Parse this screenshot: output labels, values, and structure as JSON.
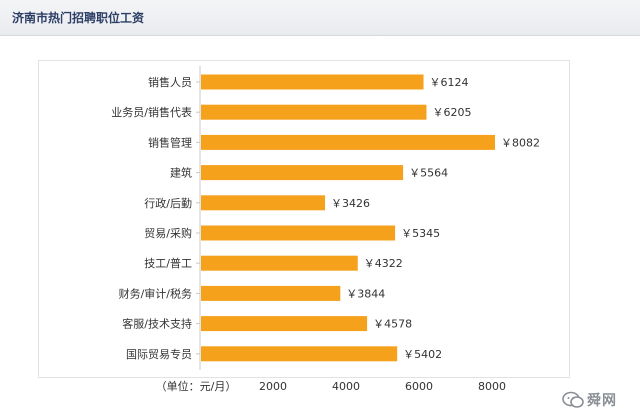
{
  "header": {
    "title": "济南市热门招聘职位工资"
  },
  "watermark": {
    "text": "舜网"
  },
  "chart_data": {
    "type": "bar",
    "orientation": "horizontal",
    "title": "",
    "xlabel": "",
    "ylabel": "",
    "unit_label": "（单位：元/月）",
    "categories": [
      "销售人员",
      "业务员/销售代表",
      "销售管理",
      "建筑",
      "行政/后勤",
      "贸易/采购",
      "技工/普工",
      "财务/审计/税务",
      "客服/技术支持",
      "国际贸易专员"
    ],
    "values": [
      6124,
      6205,
      8082,
      5564,
      3426,
      5345,
      4322,
      3844,
      4578,
      5402
    ],
    "value_labels": [
      "￥6124",
      "￥6205",
      "￥8082",
      "￥5564",
      "￥3426",
      "￥5345",
      "￥4322",
      "￥3844",
      "￥4578",
      "￥5402"
    ],
    "x_ticks": [
      2000,
      4000,
      6000,
      8000
    ],
    "x_tick_labels": [
      "2000",
      "4000",
      "6000",
      "8000"
    ],
    "xlim": [
      0,
      10000
    ],
    "grid": false,
    "bar_color": "#f5a11c"
  }
}
